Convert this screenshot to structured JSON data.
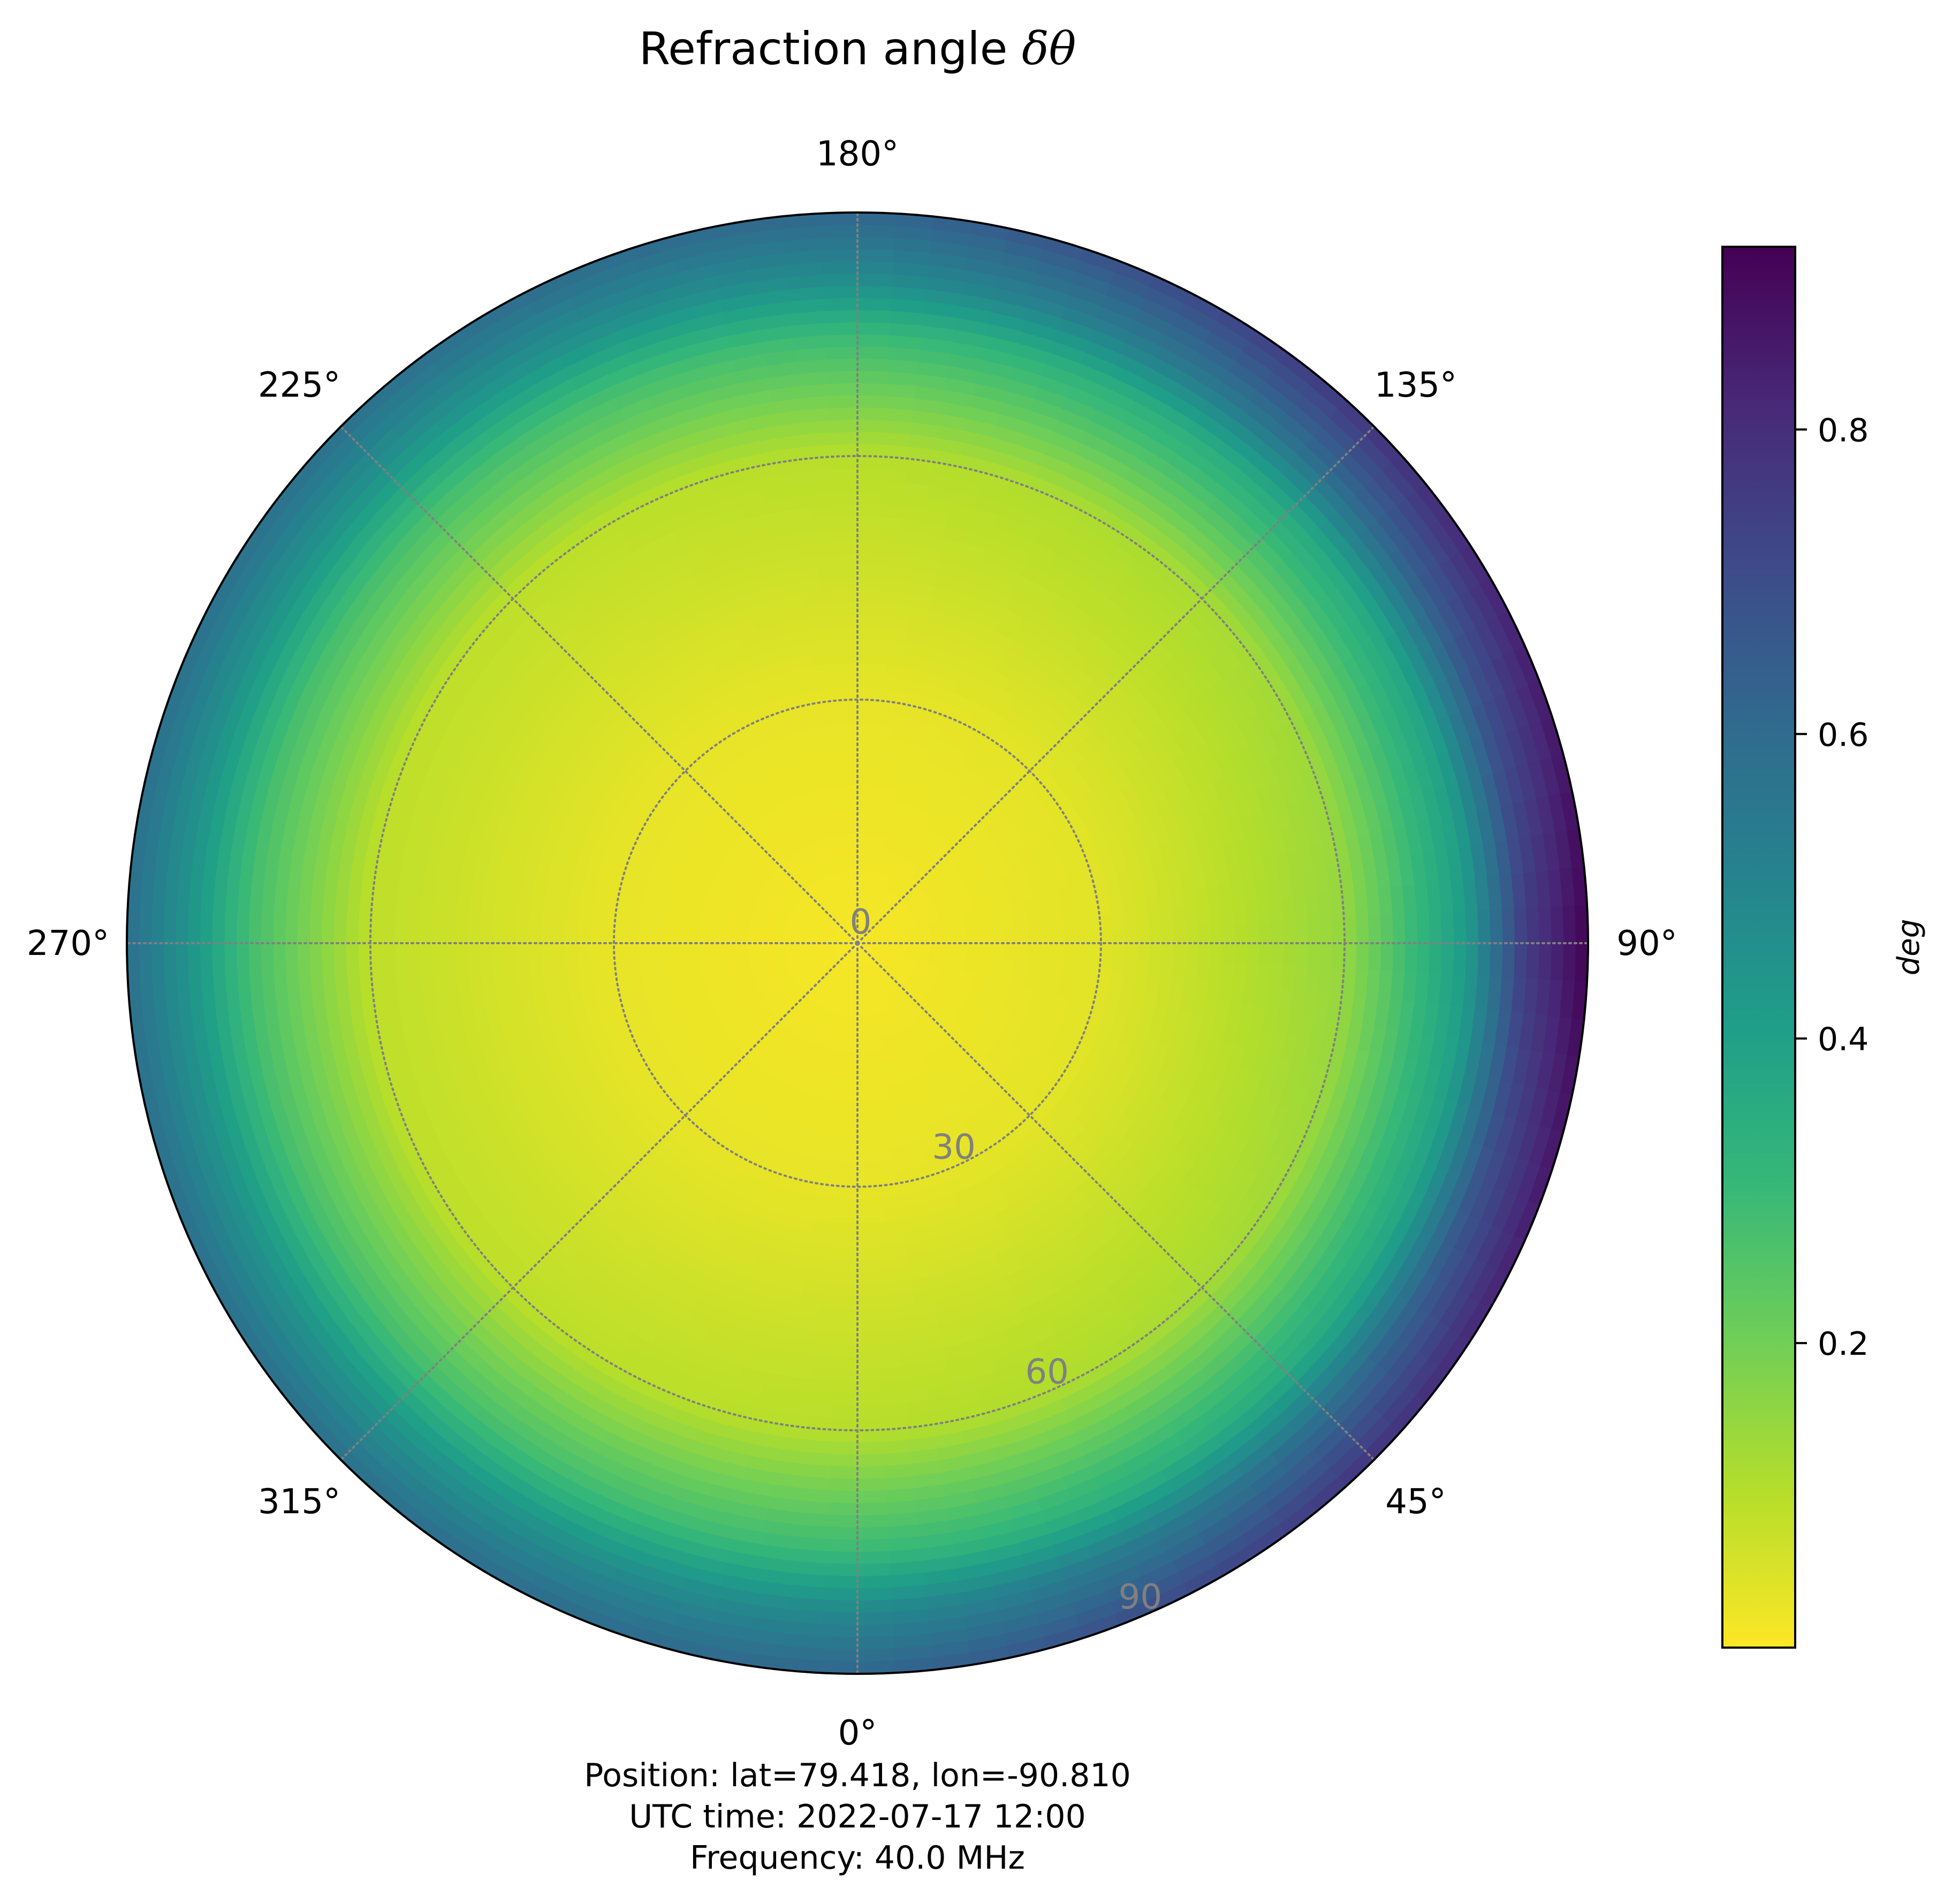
{
  "chart_data": {
    "type": "heatmap",
    "projection": "polar",
    "title": "Refraction angle δθ",
    "title_parts": {
      "text": "Refraction angle ",
      "symbol": "δθ"
    },
    "theta_ticks": [
      {
        "deg": 0,
        "label": "0°"
      },
      {
        "deg": 45,
        "label": "45°"
      },
      {
        "deg": 90,
        "label": "90°"
      },
      {
        "deg": 135,
        "label": "135°"
      },
      {
        "deg": 180,
        "label": "180°"
      },
      {
        "deg": 225,
        "label": "225°"
      },
      {
        "deg": 270,
        "label": "270°"
      },
      {
        "deg": 315,
        "label": "315°"
      }
    ],
    "r_ticks": [
      {
        "value": 0,
        "label": "0"
      },
      {
        "value": 30,
        "label": "30"
      },
      {
        "value": 60,
        "label": "60"
      },
      {
        "value": 90,
        "label": "90"
      }
    ],
    "rlim": [
      0,
      90
    ],
    "theta_zero_location": "bottom",
    "theta_direction": "counterclockwise",
    "grid": true,
    "grid_style": "dotted",
    "grid_color": "#808080",
    "colormap": "viridis_r",
    "colorbar": {
      "label": "deg",
      "range": [
        0.0,
        0.92
      ],
      "ticks": [
        {
          "value": 0.2,
          "label": "0.2"
        },
        {
          "value": 0.4,
          "label": "0.4"
        },
        {
          "value": 0.6,
          "label": "0.6"
        },
        {
          "value": 0.8,
          "label": "0.8"
        }
      ]
    },
    "field_samples": {
      "description_of_axes": "zenith angle (deg) along rows, azimuth (deg) along columns",
      "zenith": [
        0,
        30,
        60,
        75,
        82,
        90
      ],
      "azimuth": [
        0,
        45,
        90,
        135,
        180,
        225,
        270,
        315
      ],
      "values": [
        [
          0.01,
          0.01,
          0.01,
          0.01,
          0.01,
          0.01,
          0.01,
          0.01
        ],
        [
          0.03,
          0.035,
          0.04,
          0.035,
          0.03,
          0.03,
          0.03,
          0.03
        ],
        [
          0.1,
          0.12,
          0.15,
          0.12,
          0.1,
          0.09,
          0.09,
          0.09
        ],
        [
          0.3,
          0.36,
          0.42,
          0.36,
          0.3,
          0.28,
          0.28,
          0.28
        ],
        [
          0.48,
          0.6,
          0.75,
          0.6,
          0.48,
          0.44,
          0.44,
          0.44
        ],
        [
          0.62,
          0.78,
          0.92,
          0.78,
          0.62,
          0.58,
          0.58,
          0.58
        ]
      ]
    }
  },
  "footer": {
    "lines": [
      "Position: lat=79.418, lon=-90.810",
      "UTC time: 2022-07-17 12:00",
      "Frequency: 40.0 MHz"
    ]
  },
  "colors": {
    "viridis_stops": [
      "#fde725",
      "#b5de2b",
      "#6ece58",
      "#35b779",
      "#1f9e89",
      "#26828e",
      "#31688e",
      "#3e4989",
      "#482878",
      "#440154"
    ],
    "grid": "#808080",
    "axis_edge": "#000000"
  }
}
